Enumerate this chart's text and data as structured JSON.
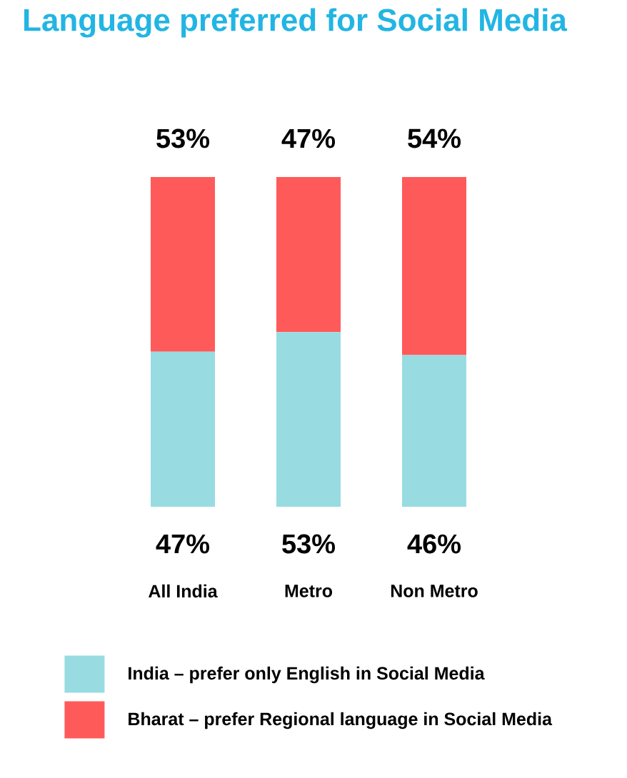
{
  "chart_data": {
    "type": "bar",
    "stacked": true,
    "title": "Language preferred for Social Media",
    "categories": [
      "All India",
      "Metro",
      "Non Metro"
    ],
    "series": [
      {
        "name": "India – prefer only English in Social Media",
        "color": "#98dce2",
        "values": [
          47,
          53,
          46
        ],
        "value_labels": [
          "47%",
          "53%",
          "46%"
        ]
      },
      {
        "name": "Bharat – prefer Regional language in Social Media",
        "color": "#ff5a5a",
        "values": [
          53,
          47,
          54
        ],
        "value_labels": [
          "53%",
          "47%",
          "54%"
        ]
      }
    ],
    "legend": "bottom"
  }
}
